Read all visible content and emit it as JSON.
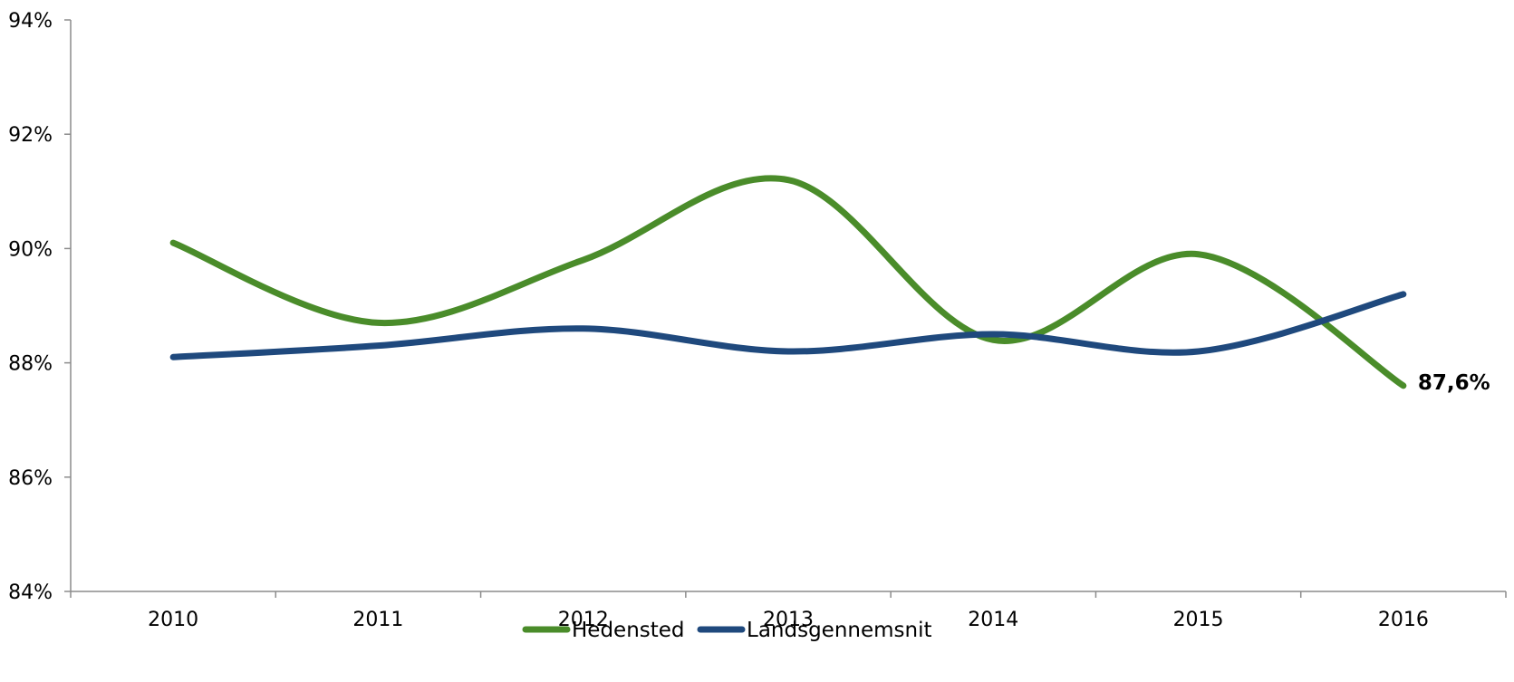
{
  "chart_data": {
    "type": "line",
    "categories": [
      "2010",
      "2011",
      "2012",
      "2013",
      "2014",
      "2015",
      "2016"
    ],
    "series": [
      {
        "name": "Hedensted",
        "values": [
          90.1,
          88.7,
          89.8,
          91.2,
          88.4,
          89.9,
          87.6
        ],
        "color": "#4a8c2a"
      },
      {
        "name": "Landsgennemsnit",
        "values": [
          88.1,
          88.3,
          88.6,
          88.2,
          88.5,
          88.2,
          89.2
        ],
        "color": "#1f497d"
      }
    ],
    "ylim": [
      84,
      94
    ],
    "yticks": [
      84,
      86,
      88,
      90,
      92,
      94
    ],
    "ytick_labels": [
      "84%",
      "86%",
      "88%",
      "90%",
      "92%",
      "94%"
    ],
    "data_label": {
      "series": 0,
      "index": 6,
      "text": "87,6%"
    },
    "legend_position": "bottom",
    "grid": false,
    "smooth": true
  }
}
